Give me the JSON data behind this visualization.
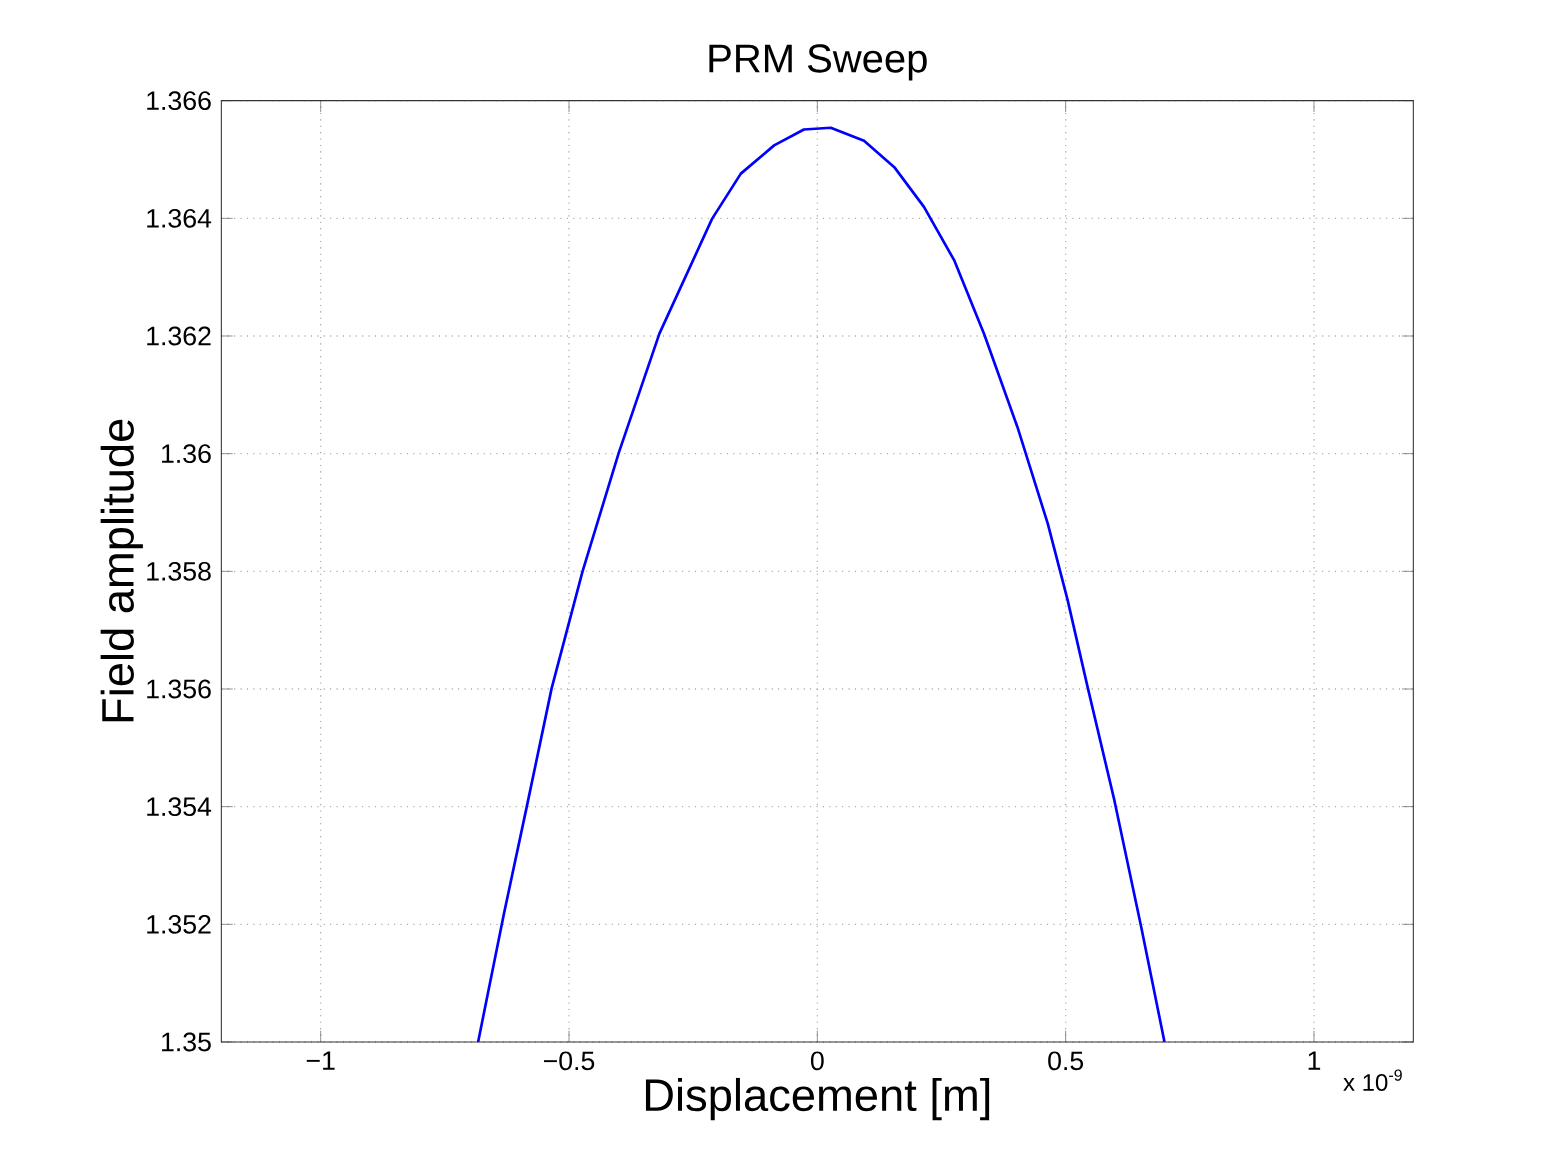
{
  "chart_data": {
    "type": "line",
    "title": "PRM Sweep",
    "xlabel": "Displacement [m]",
    "ylabel": "Field amplitude",
    "x": [
      -0.683,
      -0.631,
      -0.585,
      -0.535,
      -0.473,
      -0.4,
      -0.318,
      -0.212,
      -0.154,
      -0.087,
      -0.027,
      0.027,
      0.094,
      0.155,
      0.215,
      0.276,
      0.336,
      0.403,
      0.464,
      0.504,
      0.544,
      0.598,
      0.652,
      0.699
    ],
    "series": [
      {
        "color": "#0000ff",
        "values": [
          1.35,
          1.35218,
          1.354,
          1.35601,
          1.35799,
          1.36001,
          1.36204,
          1.36399,
          1.36476,
          1.36524,
          1.36551,
          1.36554,
          1.36532,
          1.36487,
          1.36419,
          1.36328,
          1.36203,
          1.36045,
          1.35881,
          1.35751,
          1.35604,
          1.35411,
          1.35196,
          1.35
        ]
      }
    ],
    "xlim": [
      -1.2,
      1.2
    ],
    "ylim": [
      1.35,
      1.366
    ],
    "xticks": [
      {
        "value": -1,
        "label": "−1"
      },
      {
        "value": -0.5,
        "label": "−0.5"
      },
      0,
      0.5,
      1
    ],
    "yticks": [
      1.35,
      1.352,
      1.354,
      1.356,
      1.358,
      1.36,
      1.362,
      1.364,
      1.366
    ],
    "grid": true,
    "marker": "none",
    "line_style": "solid",
    "annotations": [
      "x 10$^{-9}$"
    ]
  }
}
